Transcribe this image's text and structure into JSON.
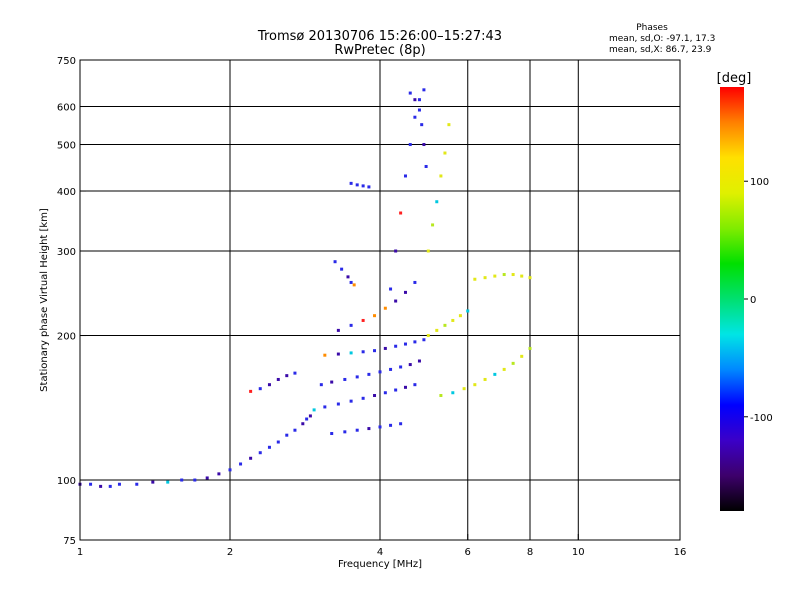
{
  "chart_data": {
    "type": "scatter",
    "title": "Tromsø 20130706 15:26:00–15:27:43",
    "subtitle": "RwPretec (8p)",
    "phase_info": {
      "heading": "Phases",
      "line_o": "mean, sd,O: -97.1, 17.3",
      "line_x": "mean, sd,X:  86.7, 23.9"
    },
    "xlabel": "Frequency [MHz]",
    "ylabel": "Stationary phase Virtual Height [km]",
    "x_scale": "log",
    "y_scale": "log",
    "xlim": [
      1,
      16
    ],
    "ylim": [
      75,
      750
    ],
    "x_ticks": [
      {
        "value": 1,
        "label": "1"
      },
      {
        "value": 2,
        "label": "2"
      },
      {
        "value": 4,
        "label": "4"
      },
      {
        "value": 6,
        "label": "6"
      },
      {
        "value": 8,
        "label": "8"
      },
      {
        "value": 10,
        "label": "10"
      },
      {
        "value": 16,
        "label": "16"
      }
    ],
    "y_ticks": [
      {
        "value": 75,
        "label": "75"
      },
      {
        "value": 100,
        "label": "100"
      },
      {
        "value": 200,
        "label": "200"
      },
      {
        "value": 300,
        "label": "300"
      },
      {
        "value": 400,
        "label": "400"
      },
      {
        "value": 500,
        "label": "500"
      },
      {
        "value": 600,
        "label": "600"
      },
      {
        "value": 750,
        "label": "750"
      }
    ],
    "x_gridlines": [
      2,
      4,
      6,
      8,
      10
    ],
    "y_gridlines": [
      100,
      200,
      300,
      400,
      500,
      600
    ],
    "grid": true,
    "colorbar": {
      "title": "[deg]",
      "range": [
        -180,
        180
      ],
      "ticks": [
        {
          "value": 100,
          "label": "100"
        },
        {
          "value": 0,
          "label": "0"
        },
        {
          "value": -100,
          "label": "-100"
        }
      ],
      "colors": [
        "#000000",
        "#3d006b",
        "#3b00c8",
        "#0000ff",
        "#0088ff",
        "#00e5e5",
        "#00e070",
        "#00e000",
        "#80ec00",
        "#e0f000",
        "#ffe000",
        "#ff8000",
        "#ff0000"
      ]
    },
    "point_colors": {
      "o_mode": "#2a2ae8",
      "o_mode_dark": "#3a0aa8",
      "x_mode": "#e2e818",
      "x_mode_green": "#b8e820",
      "cyan": "#00c8e0",
      "green": "#20d040",
      "orange": "#ff8c00",
      "red": "#ff2020"
    },
    "series": [
      {
        "mode": "o",
        "x": [
          1.0,
          1.05,
          1.1,
          1.15,
          1.2,
          1.3,
          1.4,
          1.5,
          1.6,
          1.7,
          1.8,
          1.9,
          2.0,
          2.1,
          2.2,
          2.3,
          2.4,
          2.5,
          2.6,
          2.7,
          2.8,
          2.85,
          2.9
        ],
        "y": [
          98,
          98,
          97,
          97,
          98,
          98,
          99,
          99,
          100,
          100,
          101,
          103,
          105,
          108,
          111,
          114,
          117,
          120,
          124,
          127,
          131,
          134,
          136
        ]
      },
      {
        "mode": "o",
        "x": [
          2.2,
          2.3,
          2.4,
          2.5,
          2.6,
          2.7
        ],
        "y": [
          153,
          155,
          158,
          162,
          165,
          167
        ]
      },
      {
        "mode": "o",
        "x": [
          2.95,
          3.1,
          3.3,
          3.5,
          3.7,
          3.9,
          4.1,
          4.3,
          4.5,
          4.7
        ],
        "y": [
          140,
          142,
          144,
          146,
          148,
          150,
          152,
          154,
          156,
          158
        ]
      },
      {
        "mode": "o",
        "x": [
          3.05,
          3.2,
          3.4,
          3.6,
          3.8,
          4.0,
          4.2,
          4.4,
          4.6,
          4.8
        ],
        "y": [
          158,
          160,
          162,
          164,
          166,
          168,
          170,
          172,
          174,
          177
        ]
      },
      {
        "mode": "o",
        "x": [
          3.1,
          3.3,
          3.5,
          3.7,
          3.9,
          4.1,
          4.3,
          4.5,
          4.7,
          4.9
        ],
        "y": [
          182,
          183,
          184,
          185,
          186,
          188,
          190,
          192,
          194,
          196
        ]
      },
      {
        "mode": "o",
        "x": [
          3.3,
          3.5,
          3.7,
          3.9,
          4.1,
          4.3,
          4.5,
          4.7
        ],
        "y": [
          205,
          210,
          215,
          220,
          228,
          236,
          246,
          258
        ]
      },
      {
        "mode": "o",
        "x": [
          3.2,
          3.4,
          3.6,
          3.8,
          4.0,
          4.2,
          4.4
        ],
        "y": [
          125,
          126,
          127,
          128,
          129,
          130,
          131
        ]
      },
      {
        "mode": "o",
        "x": [
          3.25,
          3.35,
          3.45,
          3.5,
          3.55
        ],
        "y": [
          285,
          275,
          265,
          258,
          255
        ]
      },
      {
        "mode": "o",
        "x": [
          3.5,
          3.6,
          3.7,
          3.8
        ],
        "y": [
          415,
          412,
          410,
          408
        ]
      },
      {
        "mode": "o",
        "x": [
          4.2,
          4.3,
          4.4,
          4.5,
          4.6,
          4.7,
          4.8,
          4.9
        ],
        "y": [
          250,
          300,
          360,
          430,
          500,
          570,
          620,
          650
        ]
      },
      {
        "mode": "o",
        "x": [
          4.6,
          4.7,
          4.8,
          4.85,
          4.9,
          4.95
        ],
        "y": [
          640,
          620,
          590,
          550,
          500,
          450
        ]
      },
      {
        "mode": "x",
        "x": [
          5.0,
          5.1,
          5.2,
          5.3,
          5.4,
          5.5
        ],
        "y": [
          300,
          340,
          380,
          430,
          480,
          550
        ]
      },
      {
        "mode": "x",
        "x": [
          5.3,
          5.6,
          5.9,
          6.2,
          6.5,
          6.8,
          7.1,
          7.4,
          7.7,
          8.0
        ],
        "y": [
          150,
          152,
          155,
          158,
          162,
          166,
          170,
          175,
          181,
          188
        ]
      },
      {
        "mode": "x",
        "x": [
          6.2,
          6.5,
          6.8,
          7.1,
          7.4,
          7.7,
          8.0
        ],
        "y": [
          262,
          264,
          266,
          268,
          268,
          266,
          264
        ]
      },
      {
        "mode": "x",
        "x": [
          5.0,
          5.2,
          5.4,
          5.6,
          5.8,
          6.0
        ],
        "y": [
          200,
          205,
          210,
          215,
          220,
          225
        ]
      }
    ]
  }
}
